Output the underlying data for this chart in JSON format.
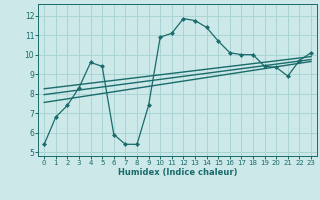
{
  "title": "",
  "xlabel": "Humidex (Indice chaleur)",
  "ylabel": "",
  "background_color": "#cce8e8",
  "grid_color": "#aad4d4",
  "line_color": "#1a6b6b",
  "xlim": [
    -0.5,
    23.5
  ],
  "ylim": [
    4.8,
    12.6
  ],
  "yticks": [
    5,
    6,
    7,
    8,
    9,
    10,
    11,
    12
  ],
  "xticks": [
    0,
    1,
    2,
    3,
    4,
    5,
    6,
    7,
    8,
    9,
    10,
    11,
    12,
    13,
    14,
    15,
    16,
    17,
    18,
    19,
    20,
    21,
    22,
    23
  ],
  "curve1_x": [
    0,
    1,
    2,
    3,
    4,
    5,
    6,
    7,
    8,
    9,
    10,
    11,
    12,
    13,
    14,
    15,
    16,
    17,
    18,
    19,
    20,
    21,
    22,
    23
  ],
  "curve1_y": [
    5.4,
    6.8,
    7.4,
    8.3,
    9.6,
    9.4,
    5.9,
    5.4,
    5.4,
    7.4,
    10.9,
    11.1,
    11.85,
    11.75,
    11.4,
    10.7,
    10.1,
    10.0,
    10.0,
    9.4,
    9.35,
    8.9,
    9.7,
    10.1
  ],
  "line1_x": [
    0,
    23
  ],
  "line1_y": [
    7.55,
    9.65
  ],
  "line2_x": [
    0,
    23
  ],
  "line2_y": [
    7.95,
    9.75
  ],
  "line3_x": [
    0,
    23
  ],
  "line3_y": [
    8.25,
    9.9
  ]
}
